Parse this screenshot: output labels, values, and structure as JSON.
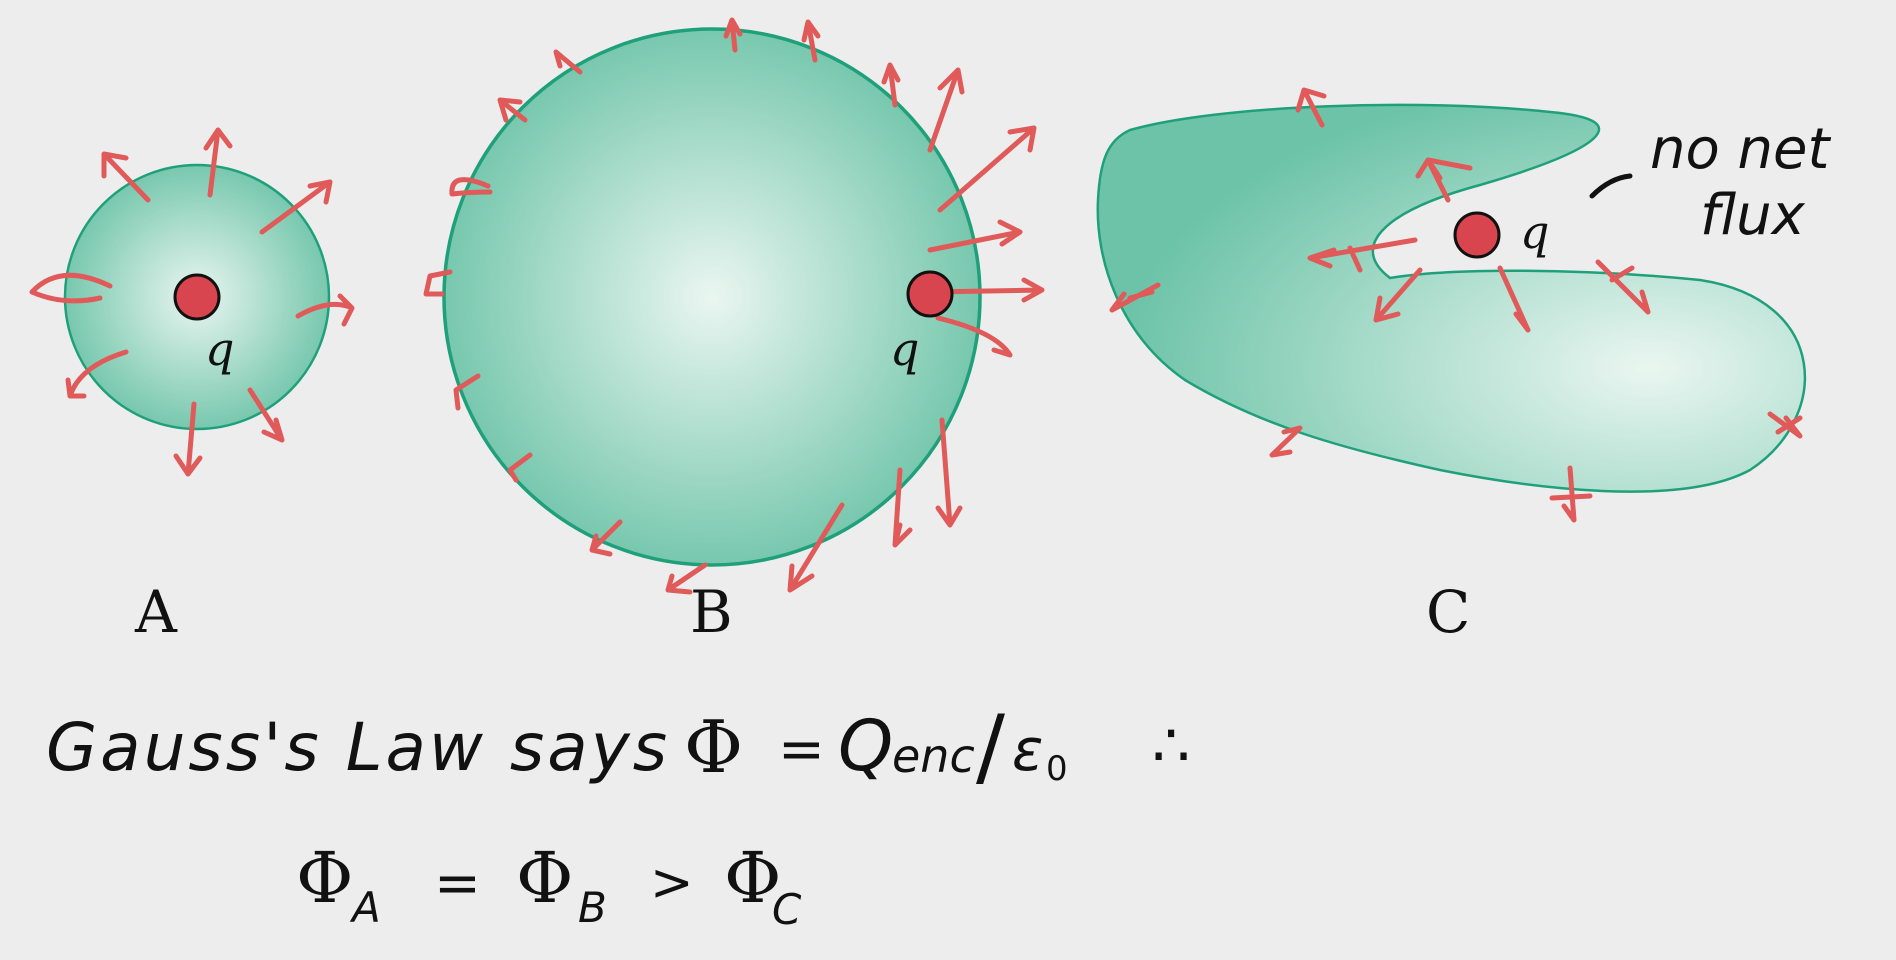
{
  "colors": {
    "background": "#ededed",
    "surface_fill_center": "#e6f4ee",
    "surface_fill_edge": "#6cc3a7",
    "surface_stroke": "#1fa07a",
    "arrow": "#e05a5a",
    "charge": "#d9454f",
    "ink": "#111111"
  },
  "surfaces": [
    {
      "label": "A",
      "charge_label": "q",
      "shape": "sphere"
    },
    {
      "label": "B",
      "charge_label": "q",
      "shape": "sphere"
    },
    {
      "label": "C",
      "charge_label": "q",
      "shape": "irregular"
    }
  ],
  "annotation": {
    "line1": "no net",
    "line2": "flux"
  },
  "equation1": {
    "text": "Gauss's Law says",
    "phi": "Φ",
    "equals": "=",
    "rhs": "Q",
    "rhs_sub": "enc",
    "slash": "/",
    "eps": "ε",
    "eps_sub": "0",
    "therefore": "∴"
  },
  "equation2": {
    "phi": "Φ",
    "sub_a": "A",
    "equals": "=",
    "sub_b": "B",
    "greater": ">",
    "sub_c": "C"
  }
}
